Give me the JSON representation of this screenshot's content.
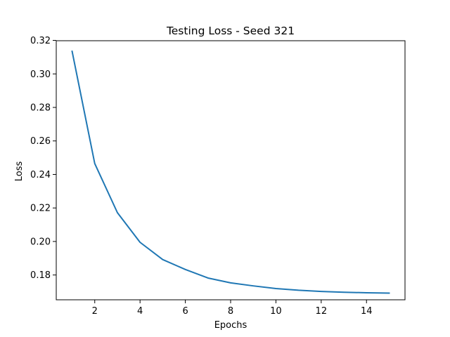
{
  "chart_data": {
    "type": "line",
    "title": "Testing Loss - Seed 321",
    "xlabel": "Epochs",
    "ylabel": "Loss",
    "xlim": [
      0.3,
      15.7
    ],
    "ylim": [
      0.1652,
      0.3198
    ],
    "xticks": [
      2,
      4,
      6,
      8,
      10,
      12,
      14
    ],
    "xtick_labels": [
      "2",
      "4",
      "6",
      "8",
      "10",
      "12",
      "14"
    ],
    "yticks": [
      0.18,
      0.2,
      0.22,
      0.24,
      0.26,
      0.28,
      0.3,
      0.32
    ],
    "ytick_labels": [
      "0.18",
      "0.20",
      "0.22",
      "0.24",
      "0.26",
      "0.28",
      "0.30",
      "0.32"
    ],
    "grid": false,
    "series": [
      {
        "x": [
          1,
          2,
          3,
          4,
          5,
          6,
          7,
          8,
          9,
          10,
          11,
          12,
          13,
          14,
          15
        ],
        "y": [
          0.3135,
          0.2465,
          0.2172,
          0.1995,
          0.1892,
          0.1833,
          0.1782,
          0.1753,
          0.1735,
          0.1719,
          0.1709,
          0.1702,
          0.1697,
          0.1694,
          0.1692
        ],
        "color": "#1f77b4"
      }
    ]
  }
}
